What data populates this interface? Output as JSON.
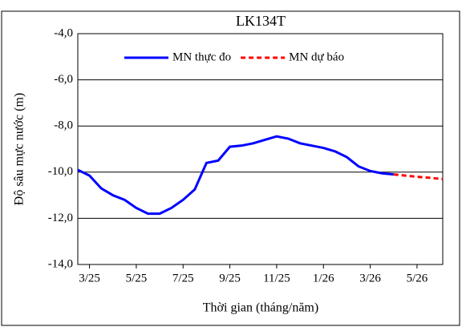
{
  "chart_data": {
    "type": "line",
    "title": "LK134T",
    "xlabel": "Thời gian (tháng/năm)",
    "ylabel": "Độ sâu mực nước (m)",
    "xlim": [
      -0.5,
      15.1
    ],
    "xticks": [
      {
        "value": 0,
        "label": "3/25"
      },
      {
        "value": 2,
        "label": "5/25"
      },
      {
        "value": 4,
        "label": "7/25"
      },
      {
        "value": 6,
        "label": "9/25"
      },
      {
        "value": 8,
        "label": "11/25"
      },
      {
        "value": 10,
        "label": "1/26"
      },
      {
        "value": 12,
        "label": "3/26"
      },
      {
        "value": 14,
        "label": "5/26"
      }
    ],
    "ylim": [
      -14,
      -4
    ],
    "yticks": [
      {
        "value": -14,
        "label": "-14,0"
      },
      {
        "value": -12,
        "label": "-12,0"
      },
      {
        "value": -10,
        "label": "-10,0"
      },
      {
        "value": -8,
        "label": "-8,0"
      },
      {
        "value": -6,
        "label": "-6,0"
      },
      {
        "value": -4,
        "label": "-4,0"
      }
    ],
    "grid": true,
    "legend": "top",
    "series": [
      {
        "name": "MN thực đo",
        "color": "#0000ff",
        "dashed": false,
        "x": [
          -0.5,
          0,
          0.5,
          1,
          1.5,
          2,
          2.5,
          3,
          3.5,
          4,
          4.5,
          5,
          5.5,
          6,
          6.5,
          7,
          7.5,
          8,
          8.5,
          9,
          9.5,
          10,
          10.5,
          11,
          11.5,
          12,
          12.5,
          13
        ],
        "values": [
          -9.9,
          -10.15,
          -10.7,
          -11.0,
          -11.2,
          -11.55,
          -11.8,
          -11.8,
          -11.55,
          -11.2,
          -10.75,
          -9.6,
          -9.5,
          -8.9,
          -8.85,
          -8.75,
          -8.6,
          -8.45,
          -8.55,
          -8.75,
          -8.85,
          -8.95,
          -9.1,
          -9.35,
          -9.75,
          -9.95,
          -10.05,
          -10.1
        ]
      },
      {
        "name": "MN dự báo",
        "color": "#ff0000",
        "dashed": true,
        "x": [
          13,
          13.5,
          14,
          14.5,
          15.1
        ],
        "values": [
          -10.1,
          -10.15,
          -10.2,
          -10.24,
          -10.3
        ]
      }
    ]
  }
}
